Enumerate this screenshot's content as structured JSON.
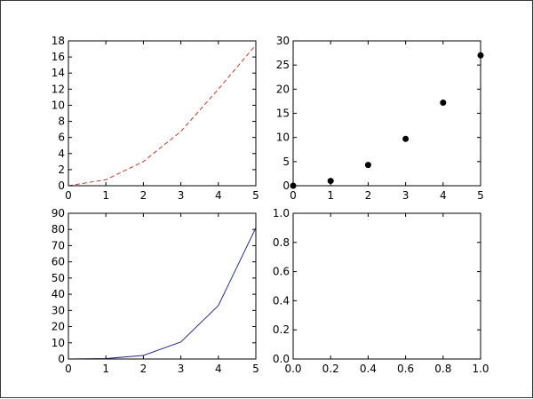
{
  "chart_data": [
    {
      "type": "line",
      "x": [
        0,
        1,
        2,
        3,
        4,
        5
      ],
      "series": [
        {
          "values": [
            0,
            0.75,
            3,
            6.75,
            12,
            17.5
          ],
          "color": "#c0392b",
          "line_style": "dashed"
        }
      ],
      "xlim": [
        0,
        5
      ],
      "ylim": [
        0,
        18
      ],
      "xticks": [
        "0",
        "1",
        "2",
        "3",
        "4",
        "5"
      ],
      "yticks": [
        "0",
        "2",
        "4",
        "6",
        "8",
        "10",
        "12",
        "14",
        "16",
        "18"
      ],
      "grid": false,
      "legend": "none"
    },
    {
      "type": "scatter",
      "x": [
        0,
        1,
        2,
        3,
        4,
        5
      ],
      "series": [
        {
          "values": [
            0,
            1,
            4.3,
            9.7,
            17.2,
            27
          ],
          "color": "#000000"
        }
      ],
      "xlim": [
        0,
        5
      ],
      "ylim": [
        0,
        30
      ],
      "xticks": [
        "0",
        "1",
        "2",
        "3",
        "4",
        "5"
      ],
      "yticks": [
        "0",
        "5",
        "10",
        "15",
        "20",
        "25",
        "30"
      ],
      "grid": false,
      "legend": "none"
    },
    {
      "type": "line",
      "x": [
        0,
        1,
        2,
        3,
        4,
        5
      ],
      "series": [
        {
          "values": [
            0,
            0.3,
            2.2,
            10.5,
            33,
            81
          ],
          "color": "#2c2c8c",
          "line_style": "solid"
        }
      ],
      "xlim": [
        0,
        5
      ],
      "ylim": [
        0,
        90
      ],
      "xticks": [
        "0",
        "1",
        "2",
        "3",
        "4",
        "5"
      ],
      "yticks": [
        "0",
        "10",
        "20",
        "30",
        "40",
        "50",
        "60",
        "70",
        "80",
        "90"
      ],
      "grid": false,
      "legend": "none"
    },
    {
      "type": "line",
      "x": [],
      "series": [],
      "xlim": [
        0,
        1
      ],
      "ylim": [
        0,
        1
      ],
      "xticks": [
        "0.0",
        "0.2",
        "0.4",
        "0.6",
        "0.8",
        "1.0"
      ],
      "yticks": [
        "0.0",
        "0.2",
        "0.4",
        "0.6",
        "0.8",
        "1.0"
      ],
      "grid": false,
      "legend": "none"
    }
  ]
}
